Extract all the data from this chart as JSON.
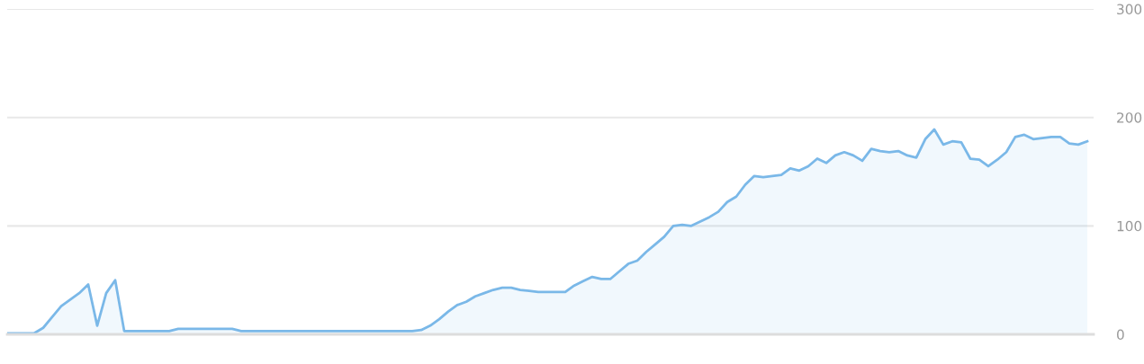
{
  "chart_data": {
    "type": "area",
    "categories": [
      null,
      null,
      null,
      null,
      null,
      null,
      null,
      null,
      null,
      null,
      null,
      null,
      null,
      null,
      null,
      null,
      null,
      null,
      null,
      null,
      null,
      null,
      null,
      null,
      null,
      null,
      null,
      null,
      null,
      null,
      null,
      null,
      null,
      null,
      null,
      null,
      null,
      null,
      null,
      null,
      null,
      null,
      null,
      null,
      null,
      null,
      null,
      null,
      null,
      null,
      null,
      null,
      null,
      null,
      null,
      null,
      null,
      null,
      null,
      null,
      null,
      null,
      null,
      null,
      null,
      null,
      null,
      null,
      null,
      null,
      null,
      null,
      null,
      null,
      null,
      null,
      null,
      null,
      null,
      null,
      null,
      null,
      null,
      null,
      null,
      null,
      null,
      null,
      null,
      null,
      null,
      null,
      null,
      null,
      null,
      null,
      null,
      null,
      null,
      null,
      null,
      null,
      null,
      null,
      null,
      null,
      null,
      null,
      null,
      null,
      null,
      null,
      null,
      null,
      null,
      null,
      null,
      null,
      null,
      null,
      null
    ],
    "series": [
      {
        "color": "#7ab8e8",
        "values": [
          1,
          1,
          1,
          1,
          6,
          16,
          26,
          32,
          38,
          46,
          8,
          38,
          50,
          3,
          3,
          3,
          3,
          3,
          3,
          5,
          5,
          5,
          5,
          5,
          5,
          5,
          3,
          3,
          3,
          3,
          3,
          3,
          3,
          3,
          3,
          3,
          3,
          3,
          3,
          3,
          3,
          3,
          3,
          3,
          3,
          3,
          4,
          8,
          14,
          21,
          27,
          30,
          35,
          38,
          41,
          43,
          43,
          41,
          40,
          39,
          39,
          39,
          39,
          45,
          49,
          53,
          51,
          51,
          58,
          65,
          68,
          76,
          83,
          90,
          100,
          101,
          100,
          104,
          108,
          113,
          122,
          127,
          138,
          146,
          145,
          146,
          147,
          153,
          151,
          155,
          162,
          158,
          165,
          168,
          165,
          160,
          171,
          169,
          168,
          169,
          165,
          163,
          180,
          189,
          175,
          178,
          177,
          162,
          161,
          155,
          161,
          168,
          182,
          184,
          180,
          181,
          182,
          182,
          176,
          175,
          178
        ]
      }
    ],
    "ylim": [
      0,
      300
    ],
    "yticks": [
      0,
      100,
      200,
      300
    ],
    "grid": "y",
    "legend": false
  }
}
